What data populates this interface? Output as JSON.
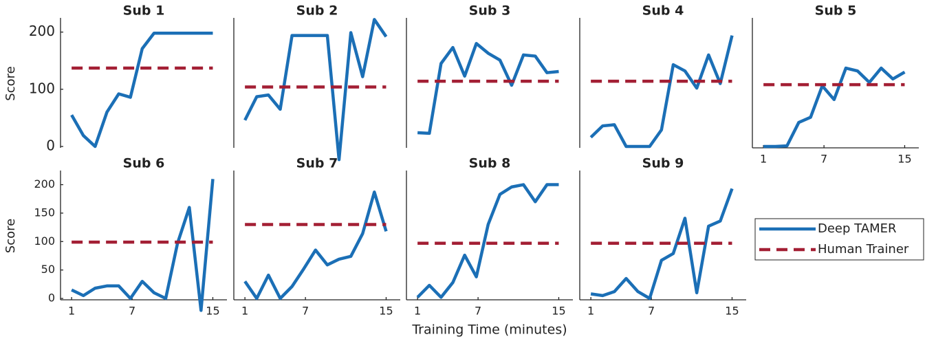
{
  "chart_data": [
    {
      "type": "line",
      "title": "Sub 1",
      "ylabel": "Score",
      "x": [
        1,
        2.17,
        3.33,
        4.5,
        5.67,
        6.83,
        8,
        9.17,
        10.33,
        11.5,
        12.67,
        13.83,
        15
      ],
      "xlim": [
        -0.1,
        16.4
      ],
      "ylim": [
        0,
        220
      ],
      "yticks": [
        0,
        100,
        200
      ],
      "series": [
        {
          "name": "Deep TAMER",
          "color": "#1b6fb6",
          "values": [
            55,
            19,
            0,
            60,
            92,
            86,
            171,
            198,
            198,
            198,
            198,
            198,
            198
          ]
        },
        {
          "name": "Human Trainer",
          "color": "#a31f34",
          "value": 137,
          "dash": true
        }
      ]
    },
    {
      "type": "line",
      "title": "Sub 2",
      "x": [
        1,
        2.17,
        3.33,
        4.5,
        5.67,
        6.83,
        8,
        9.17,
        10.33,
        11.5,
        12.67,
        13.83,
        15
      ],
      "xlim": [
        -0.1,
        16.4
      ],
      "ylim": [
        0,
        220
      ],
      "series": [
        {
          "name": "Deep TAMER",
          "color": "#1b6fb6",
          "values": [
            46,
            87,
            90,
            65,
            194,
            194,
            194,
            194,
            -23,
            199,
            122,
            222,
            192
          ]
        },
        {
          "name": "Human Trainer",
          "color": "#a31f34",
          "value": 104,
          "dash": true
        }
      ]
    },
    {
      "type": "line",
      "title": "Sub 3",
      "x": [
        1,
        2.17,
        3.33,
        4.5,
        5.67,
        6.83,
        8,
        9.17,
        10.33,
        11.5,
        12.67,
        13.83,
        15
      ],
      "xlim": [
        -0.1,
        16.4
      ],
      "ylim": [
        0,
        220
      ],
      "series": [
        {
          "name": "Deep TAMER",
          "color": "#1b6fb6",
          "values": [
            24,
            23,
            145,
            173,
            123,
            180,
            163,
            151,
            107,
            160,
            158,
            129,
            131
          ]
        },
        {
          "name": "Human Trainer",
          "color": "#a31f34",
          "value": 114,
          "dash": true
        }
      ]
    },
    {
      "type": "line",
      "title": "Sub 4",
      "x": [
        1,
        2.17,
        3.33,
        4.5,
        5.67,
        6.83,
        8,
        9.17,
        10.33,
        11.5,
        12.67,
        13.83,
        15
      ],
      "xlim": [
        -0.1,
        16.4
      ],
      "ylim": [
        0,
        220
      ],
      "series": [
        {
          "name": "Deep TAMER",
          "color": "#1b6fb6",
          "values": [
            16,
            36,
            38,
            0,
            0,
            0,
            29,
            143,
            132,
            102,
            160,
            110,
            194
          ]
        },
        {
          "name": "Human Trainer",
          "color": "#a31f34",
          "value": 114,
          "dash": true
        }
      ]
    },
    {
      "type": "line",
      "title": "Sub 5",
      "x": [
        1,
        2.17,
        3.33,
        4.5,
        5.67,
        6.83,
        8,
        9.17,
        10.33,
        11.5,
        12.67,
        13.83,
        15
      ],
      "xlim": [
        -0.1,
        16.4
      ],
      "ylim": [
        0,
        220
      ],
      "xticks": [
        1,
        7,
        15
      ],
      "series": [
        {
          "name": "Deep TAMER",
          "color": "#1b6fb6",
          "values": [
            0,
            0,
            1,
            42,
            51,
            106,
            82,
            137,
            132,
            112,
            137,
            118,
            130
          ]
        },
        {
          "name": "Human Trainer",
          "color": "#a31f34",
          "value": 108,
          "dash": true
        }
      ]
    },
    {
      "type": "line",
      "title": "Sub 6",
      "ylabel": "Score",
      "x": [
        1,
        2.17,
        3.33,
        4.5,
        5.67,
        6.83,
        8,
        9.17,
        10.33,
        11.5,
        12.67,
        13.83,
        15
      ],
      "xlim": [
        -0.1,
        16.4
      ],
      "ylim": [
        0,
        220
      ],
      "yticks": [
        0,
        50,
        100,
        150,
        200
      ],
      "xticks": [
        1,
        7,
        15
      ],
      "series": [
        {
          "name": "Deep TAMER",
          "color": "#1b6fb6",
          "values": [
            15,
            5,
            18,
            22,
            22,
            0,
            30,
            10,
            0,
            97,
            160,
            -21,
            210
          ]
        },
        {
          "name": "Human Trainer",
          "color": "#a31f34",
          "value": 99,
          "dash": true
        }
      ]
    },
    {
      "type": "line",
      "title": "Sub 7",
      "x": [
        1,
        2.17,
        3.33,
        4.5,
        5.67,
        6.83,
        8,
        9.17,
        10.33,
        11.5,
        12.67,
        13.83,
        15
      ],
      "xlim": [
        -0.1,
        16.4
      ],
      "ylim": [
        0,
        220
      ],
      "xticks": [
        1,
        7,
        15
      ],
      "series": [
        {
          "name": "Deep TAMER",
          "color": "#1b6fb6",
          "values": [
            30,
            0,
            41,
            0,
            21,
            52,
            85,
            59,
            69,
            74,
            114,
            187,
            118
          ]
        },
        {
          "name": "Human Trainer",
          "color": "#a31f34",
          "value": 130,
          "dash": true
        }
      ]
    },
    {
      "type": "line",
      "title": "Sub 8",
      "xlabel": "Training Time (minutes)",
      "x": [
        1,
        2.17,
        3.33,
        4.5,
        5.67,
        6.83,
        8,
        9.17,
        10.33,
        11.5,
        12.67,
        13.83,
        15
      ],
      "xlim": [
        -0.1,
        16.4
      ],
      "ylim": [
        0,
        220
      ],
      "xticks": [
        1,
        7,
        15
      ],
      "series": [
        {
          "name": "Deep TAMER",
          "color": "#1b6fb6",
          "values": [
            2,
            23,
            2,
            28,
            76,
            38,
            130,
            183,
            196,
            200,
            170,
            200,
            200
          ]
        },
        {
          "name": "Human Trainer",
          "color": "#a31f34",
          "value": 97,
          "dash": true
        }
      ]
    },
    {
      "type": "line",
      "title": "Sub 9",
      "legend": true,
      "x": [
        1,
        2.17,
        3.33,
        4.5,
        5.67,
        6.83,
        8,
        9.17,
        10.33,
        11.5,
        12.67,
        13.83,
        15
      ],
      "xlim": [
        -0.1,
        16.4
      ],
      "ylim": [
        0,
        220
      ],
      "xticks": [
        1,
        7,
        15
      ],
      "series": [
        {
          "name": "Deep TAMER",
          "color": "#1b6fb6",
          "values": [
            8,
            5,
            12,
            35,
            12,
            0,
            67,
            79,
            141,
            10,
            127,
            136,
            193
          ]
        },
        {
          "name": "Human Trainer",
          "color": "#a31f34",
          "value": 97,
          "dash": true
        }
      ]
    }
  ]
}
